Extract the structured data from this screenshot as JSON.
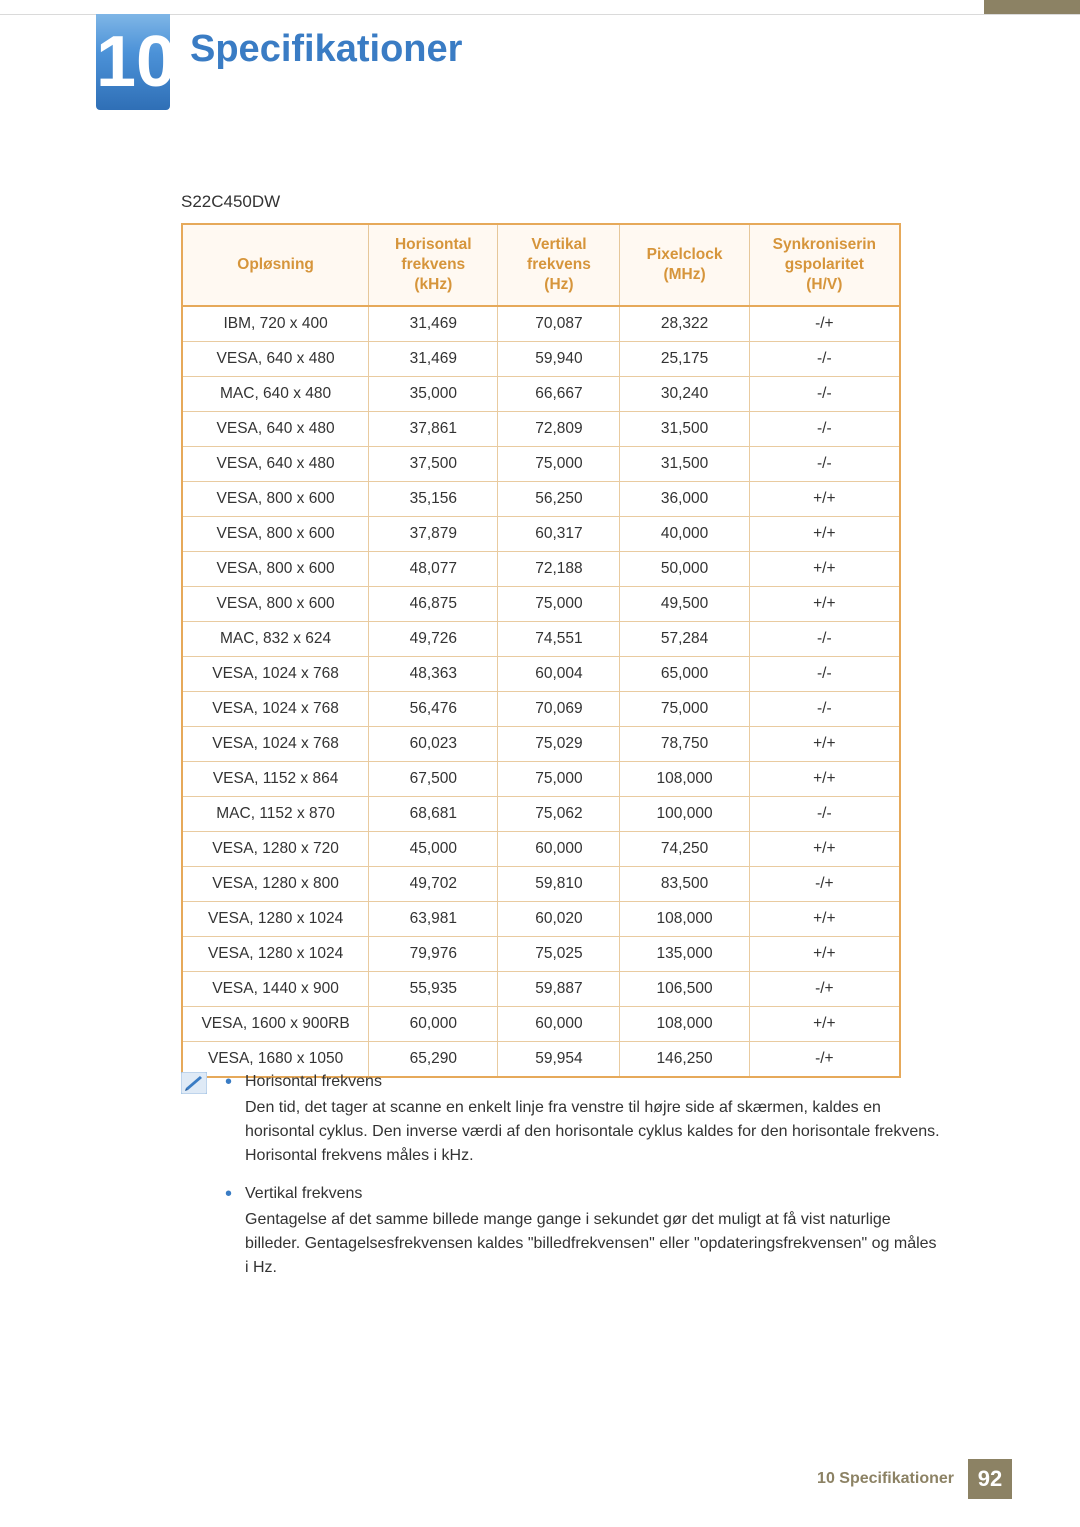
{
  "chapter_number": "10",
  "chapter_title": "Specifikationer",
  "model": "S22C450DW",
  "table": {
    "columns": [
      "Opløsning",
      "Horisontal frekvens (kHz)",
      "Vertikal frekvens (Hz)",
      "Pixelclock (MHz)",
      "Synkroniseringspolaritet (H/V)"
    ],
    "header_color": "#d6953b",
    "header_bg": "#fff9f2",
    "border_color": "#e6a95a",
    "cell_border_color": "#e9cba0",
    "col_widths_pct": [
      26,
      18,
      17,
      18,
      21
    ],
    "rows": [
      [
        "IBM, 720 x 400",
        "31,469",
        "70,087",
        "28,322",
        "-/+"
      ],
      [
        "VESA, 640 x 480",
        "31,469",
        "59,940",
        "25,175",
        "-/-"
      ],
      [
        "MAC, 640 x 480",
        "35,000",
        "66,667",
        "30,240",
        "-/-"
      ],
      [
        "VESA, 640 x 480",
        "37,861",
        "72,809",
        "31,500",
        "-/-"
      ],
      [
        "VESA, 640 x 480",
        "37,500",
        "75,000",
        "31,500",
        "-/-"
      ],
      [
        "VESA, 800 x 600",
        "35,156",
        "56,250",
        "36,000",
        "+/+"
      ],
      [
        "VESA, 800 x 600",
        "37,879",
        "60,317",
        "40,000",
        "+/+"
      ],
      [
        "VESA, 800 x 600",
        "48,077",
        "72,188",
        "50,000",
        "+/+"
      ],
      [
        "VESA, 800 x 600",
        "46,875",
        "75,000",
        "49,500",
        "+/+"
      ],
      [
        "MAC, 832 x 624",
        "49,726",
        "74,551",
        "57,284",
        "-/-"
      ],
      [
        "VESA, 1024 x 768",
        "48,363",
        "60,004",
        "65,000",
        "-/-"
      ],
      [
        "VESA, 1024 x 768",
        "56,476",
        "70,069",
        "75,000",
        "-/-"
      ],
      [
        "VESA, 1024 x 768",
        "60,023",
        "75,029",
        "78,750",
        "+/+"
      ],
      [
        "VESA, 1152 x 864",
        "67,500",
        "75,000",
        "108,000",
        "+/+"
      ],
      [
        "MAC, 1152 x 870",
        "68,681",
        "75,062",
        "100,000",
        "-/-"
      ],
      [
        "VESA, 1280 x 720",
        "45,000",
        "60,000",
        "74,250",
        "+/+"
      ],
      [
        "VESA, 1280 x 800",
        "49,702",
        "59,810",
        "83,500",
        "-/+"
      ],
      [
        "VESA, 1280 x 1024",
        "63,981",
        "60,020",
        "108,000",
        "+/+"
      ],
      [
        "VESA, 1280 x 1024",
        "79,976",
        "75,025",
        "135,000",
        "+/+"
      ],
      [
        "VESA, 1440 x 900",
        "55,935",
        "59,887",
        "106,500",
        "-/+"
      ],
      [
        "VESA, 1600 x 900RB",
        "60,000",
        "60,000",
        "108,000",
        "+/+"
      ],
      [
        "VESA, 1680 x 1050",
        "65,290",
        "59,954",
        "146,250",
        "-/+"
      ]
    ]
  },
  "notes": [
    {
      "term": "Horisontal frekvens",
      "body": "Den tid, det tager at scanne en enkelt linje fra venstre til højre side af skærmen, kaldes en horisontal cyklus. Den inverse værdi af den horisontale cyklus kaldes for den horisontale frekvens. Horisontal frekvens måles i kHz."
    },
    {
      "term": "Vertikal frekvens",
      "body": "Gentagelse af det samme billede mange gange i sekundet gør det muligt at få vist naturlige billeder. Gentagelsesfrekvensen kaldes \"billedfrekvensen\" eller \"opdateringsfrekvensen\" og måles i Hz."
    }
  ],
  "footer": {
    "text": "10 Specifikationer",
    "page": "92",
    "bg": "#8c8264"
  },
  "colors": {
    "accent_blue": "#3a7cc4",
    "stripe": "#8c8264"
  }
}
